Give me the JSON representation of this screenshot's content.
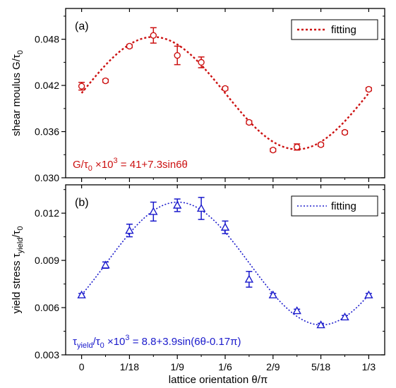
{
  "chart_data": [
    {
      "type": "scatter",
      "panel_label": "(a)",
      "ylabel": "shear moulus G/τ",
      "ylabel_sub": "0",
      "xlim": [
        -0.0556,
        1.0556
      ],
      "ylim": [
        0.03,
        0.052
      ],
      "yticks": [
        "0.030",
        "0.036",
        "0.042",
        "0.048"
      ],
      "ytick_values": [
        0.03,
        0.036,
        0.042,
        0.048
      ],
      "color": "#cc1111",
      "marker": "circle",
      "legend": {
        "label": "fitting",
        "position": "top-right"
      },
      "annotation": {
        "prefix": "G/τ",
        "sub": "0",
        "mid": " ×10",
        "sup": "3",
        "suffix": " = 41+7.3sin6θ"
      },
      "fit": {
        "a": 0.041,
        "b": 0.0073,
        "phase": 0
      },
      "points": [
        {
          "x": 0.0,
          "y": 0.0419,
          "err": 0.0005
        },
        {
          "x": 0.0833,
          "y": 0.0426,
          "err": 0.0002
        },
        {
          "x": 0.1667,
          "y": 0.0471,
          "err": 0.0002
        },
        {
          "x": 0.25,
          "y": 0.0485,
          "err": 0.001
        },
        {
          "x": 0.3333,
          "y": 0.0459,
          "err": 0.0012
        },
        {
          "x": 0.4167,
          "y": 0.045,
          "err": 0.0007
        },
        {
          "x": 0.5,
          "y": 0.0416,
          "err": 0.0002
        },
        {
          "x": 0.5833,
          "y": 0.0372,
          "err": 0.0002
        },
        {
          "x": 0.6667,
          "y": 0.0336,
          "err": 0.0002
        },
        {
          "x": 0.75,
          "y": 0.034,
          "err": 0.0004
        },
        {
          "x": 0.8333,
          "y": 0.0343,
          "err": 0.0002
        },
        {
          "x": 0.9167,
          "y": 0.0359,
          "err": 0.0002
        },
        {
          "x": 1.0,
          "y": 0.0415,
          "err": 0.0002
        }
      ]
    },
    {
      "type": "scatter",
      "panel_label": "(b)",
      "ylabel": "yield stress τ",
      "ylabel_sub": "yield",
      "ylabel_suffix": "/τ",
      "ylabel_suffix_sub": "0",
      "xlabel": "lattice orientation θ/π",
      "xticks": [
        "0",
        "1/18",
        "1/9",
        "1/6",
        "2/9",
        "5/18",
        "1/3"
      ],
      "xtick_values": [
        0,
        0.1667,
        0.3333,
        0.5,
        0.6667,
        0.8333,
        1.0
      ],
      "xlim": [
        -0.0556,
        1.0556
      ],
      "ylim": [
        0.003,
        0.0138
      ],
      "yticks": [
        "0.003",
        "0.006",
        "0.009",
        "0.012"
      ],
      "ytick_values": [
        0.003,
        0.006,
        0.009,
        0.012
      ],
      "color": "#1a1acc",
      "marker": "triangle",
      "legend": {
        "label": "fitting",
        "position": "top-right"
      },
      "annotation": {
        "prefix": "τ",
        "sub": "yield",
        "mid": "/τ",
        "sub2": "0",
        "mid2": " ×10",
        "sup": "3",
        "suffix": " = 8.8+3.9sin(6θ-0.17π)"
      },
      "fit": {
        "a": 0.0088,
        "b": 0.0039,
        "phase": -0.17
      },
      "points": [
        {
          "x": 0.0,
          "y": 0.0068,
          "err": 0.0001
        },
        {
          "x": 0.0833,
          "y": 0.0087,
          "err": 0.0002
        },
        {
          "x": 0.1667,
          "y": 0.0109,
          "err": 0.0004
        },
        {
          "x": 0.25,
          "y": 0.0121,
          "err": 0.0006
        },
        {
          "x": 0.3333,
          "y": 0.0125,
          "err": 0.0004
        },
        {
          "x": 0.4167,
          "y": 0.0123,
          "err": 0.0007
        },
        {
          "x": 0.5,
          "y": 0.0111,
          "err": 0.0004
        },
        {
          "x": 0.5833,
          "y": 0.0078,
          "err": 0.0005
        },
        {
          "x": 0.6667,
          "y": 0.0068,
          "err": 0.0001
        },
        {
          "x": 0.75,
          "y": 0.0058,
          "err": 0.0001
        },
        {
          "x": 0.8333,
          "y": 0.0049,
          "err": 0.0001
        },
        {
          "x": 0.9167,
          "y": 0.0054,
          "err": 0.0001
        },
        {
          "x": 1.0,
          "y": 0.0068,
          "err": 0.0001
        }
      ]
    }
  ]
}
